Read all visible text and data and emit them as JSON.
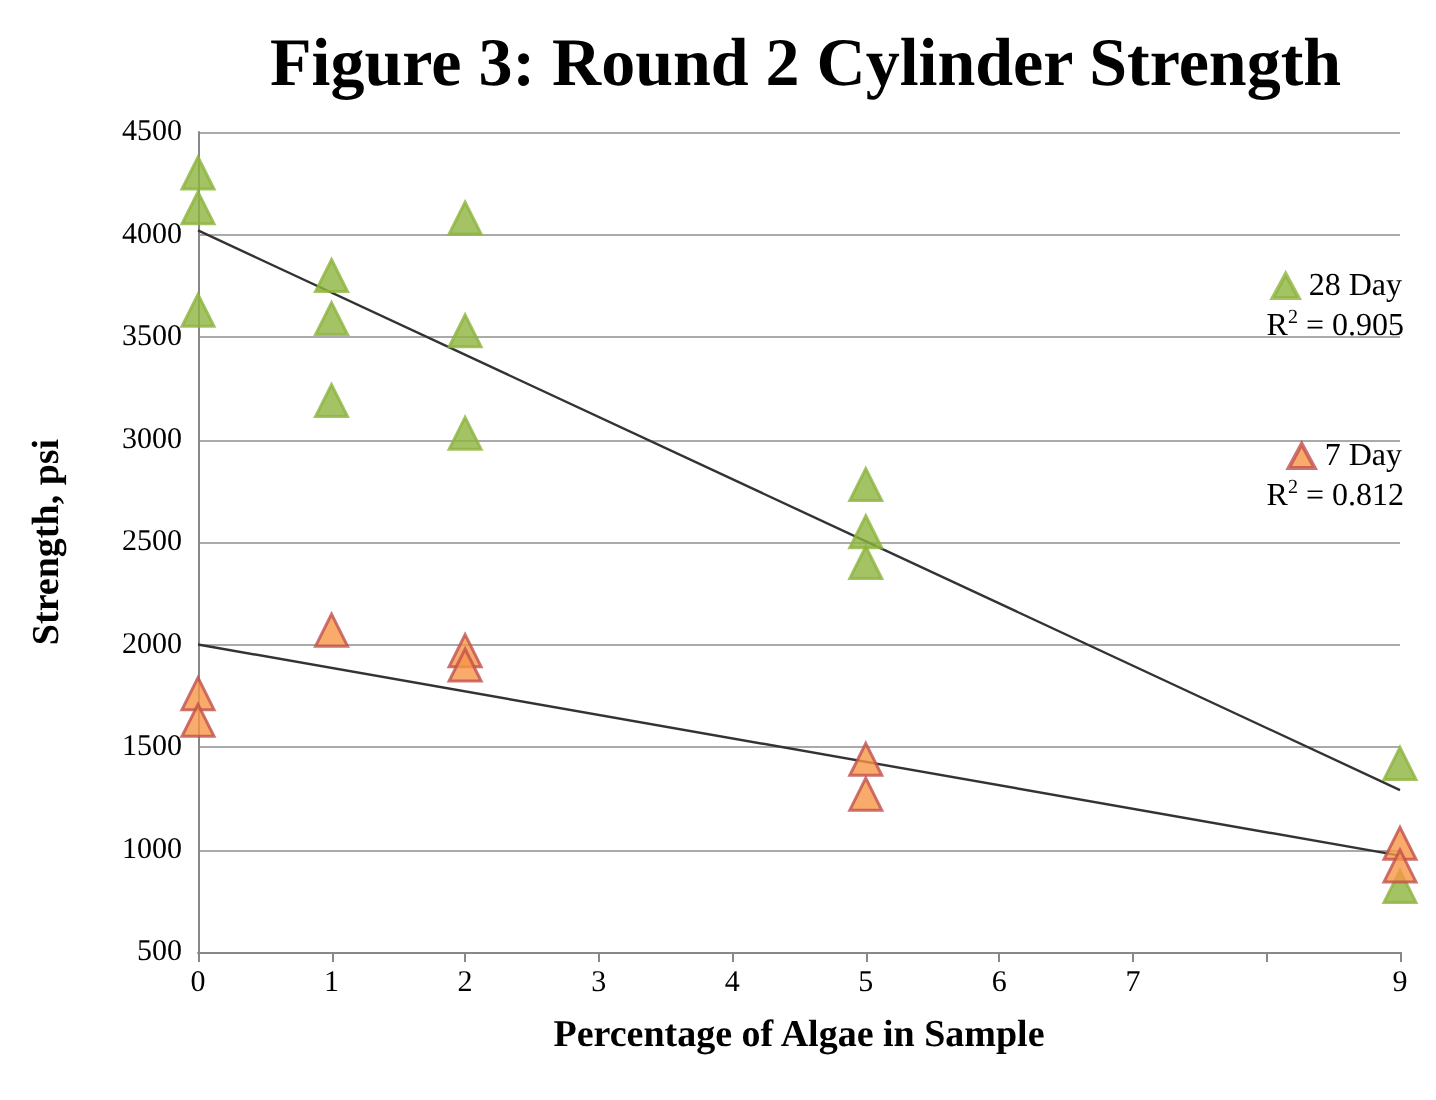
{
  "chart_data": {
    "type": "scatter",
    "title": "Figure 3: Round 2 Cylinder Strength",
    "xlabel": "Percentage of Algae in Sample",
    "ylabel": "Strength, psi",
    "xlim": [
      0,
      9
    ],
    "xticks": [
      0,
      1,
      2,
      3,
      4,
      5,
      6,
      7,
      {
        "value": 8,
        "label": null
      },
      9
    ],
    "ylim": [
      500,
      4500
    ],
    "yticks": [
      500,
      1000,
      1500,
      2000,
      2500,
      3000,
      3500,
      4000,
      4500
    ],
    "grid": "y",
    "legend": "right",
    "marker": "triangle",
    "series": [
      {
        "name": "28 Day",
        "color": "#8db43e",
        "x": [
          0,
          0,
          0,
          1,
          1,
          1,
          2,
          2,
          2,
          5,
          5,
          5,
          9,
          9
        ],
        "values": [
          4300,
          4130,
          3630,
          3800,
          3590,
          3190,
          4080,
          3530,
          3030,
          2780,
          2550,
          2400,
          1420,
          820
        ]
      },
      {
        "name": "7 Day",
        "color": "#f79646",
        "x": [
          0,
          0,
          1,
          2,
          2,
          5,
          5,
          9,
          9
        ],
        "values": [
          1760,
          1630,
          2070,
          1970,
          1900,
          1440,
          1270,
          1030,
          920
        ]
      },
      {
        "type": "line",
        "marker": "none",
        "color": "#333333",
        "x": [
          0,
          9
        ],
        "values": [
          4020,
          1290
        ]
      },
      {
        "type": "line",
        "marker": "none",
        "color": "#333333",
        "x": [
          0,
          9
        ],
        "values": [
          2000,
          970
        ]
      }
    ],
    "annotations": [
      "R$^{2}$ = 0.905",
      "R$^{2}$ = 0.812"
    ]
  }
}
